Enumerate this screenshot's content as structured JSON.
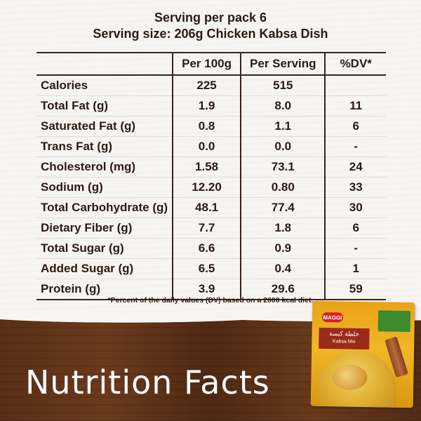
{
  "header": {
    "servings": "Serving per pack 6",
    "serving_size": "Serving size: 206g Chicken Kabsa Dish"
  },
  "table": {
    "columns": [
      "",
      "Per 100g",
      "Per Serving",
      "%DV*"
    ],
    "rows": [
      {
        "label": "Calories",
        "per100": "225",
        "perServing": "515",
        "dv": ""
      },
      {
        "label": "Total Fat (g)",
        "per100": "1.9",
        "perServing": "8.0",
        "dv": "11"
      },
      {
        "label": "Saturated Fat (g)",
        "per100": "0.8",
        "perServing": "1.1",
        "dv": "6"
      },
      {
        "label": "Trans Fat (g)",
        "per100": "0.0",
        "perServing": "0.0",
        "dv": "-"
      },
      {
        "label": "Cholesterol (mg)",
        "per100": "1.58",
        "perServing": "73.1",
        "dv": "24"
      },
      {
        "label": "Sodium (g)",
        "per100": "12.20",
        "perServing": "0.80",
        "dv": "33"
      },
      {
        "label": "Total Carbohydrate (g)",
        "per100": "48.1",
        "perServing": "77.4",
        "dv": "30"
      },
      {
        "label": "Dietary Fiber (g)",
        "per100": "7.7",
        "perServing": "1.8",
        "dv": "6"
      },
      {
        "label": "Total Sugar (g)",
        "per100": "6.6",
        "perServing": "0.9",
        "dv": "-"
      },
      {
        "label": "Added Sugar (g)",
        "per100": "6.5",
        "perServing": "0.4",
        "dv": "1"
      },
      {
        "label": "Protein (g)",
        "per100": "3.9",
        "perServing": "29.6",
        "dv": "59"
      }
    ]
  },
  "footnote": "*Percent of the daily values (DV) based on a 2000 kcal diet.",
  "title": "Nutrition Facts",
  "product": {
    "brand": "MAGGI",
    "name_ar": "خلطة كبسة",
    "name_en": "Kabsa Mix"
  },
  "colors": {
    "text": "#2b1a12",
    "wood": "#5a2f17",
    "pack_yellow": "#f1b726",
    "brand_red": "#d41f27"
  }
}
